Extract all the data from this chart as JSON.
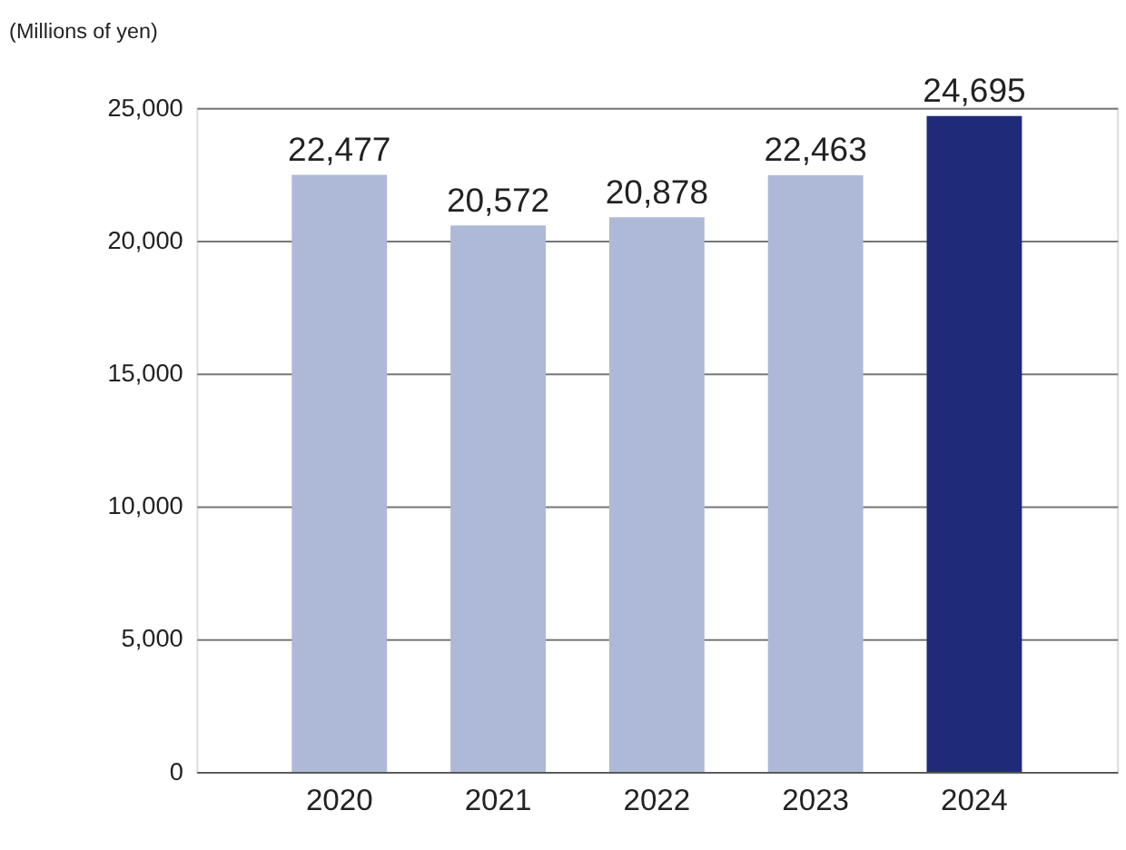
{
  "chart_data": {
    "type": "bar",
    "ylabel": "(Millions of yen)",
    "categories": [
      "2020",
      "2021",
      "2022",
      "2023",
      "2024"
    ],
    "values": [
      22477,
      20572,
      20878,
      22463,
      24695
    ],
    "value_labels": [
      "22,477",
      "20,572",
      "20,878",
      "22,463",
      "24,695"
    ],
    "colors": [
      "#adb9d6",
      "#adb9d6",
      "#adb9d6",
      "#adb9d6",
      "#1f2a78"
    ],
    "ylim": [
      0,
      25000
    ],
    "yticks": [
      0,
      {
        "value": 5000,
        "label": "5,000"
      },
      {
        "value": 10000,
        "label": "10,000"
      },
      {
        "value": 15000,
        "label": "15,000"
      },
      {
        "value": 20000,
        "label": "20,000"
      },
      {
        "value": 25000,
        "label": "25,000"
      }
    ],
    "grid": "y"
  }
}
